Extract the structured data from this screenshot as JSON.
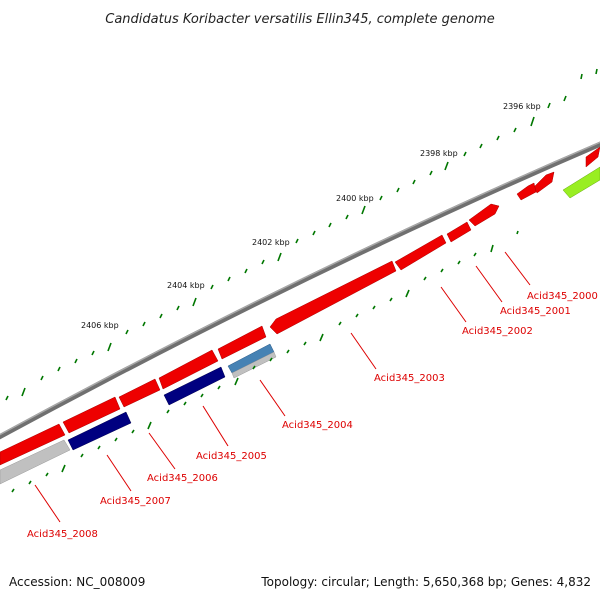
{
  "title": "Candidatus Koribacter versatilis Ellin345, complete genome",
  "footer": {
    "accession": "Accession: NC_008009",
    "topology": "Topology: circular; Length: 5,650,368 bp; Genes: 4,832"
  },
  "scale_labels": [
    "2396 kbp",
    "2398 kbp",
    "2400 kbp",
    "2402 kbp",
    "2404 kbp",
    "2406 kbp"
  ],
  "gene_labels": [
    "Acid345_2000",
    "Acid345_2001",
    "Acid345_2002",
    "Acid345_2003",
    "Acid345_2004",
    "Acid345_2005",
    "Acid345_2006",
    "Acid345_2007",
    "Acid345_2008"
  ],
  "colors": {
    "backbone": "#808080",
    "cds": "#ee0000",
    "cds_dark": "#aa0000",
    "trna_rrna": "#000080",
    "other": "#4682b4",
    "gray_feature": "#c0c0c0",
    "green_feature": "#99ee22",
    "tick": "#007700",
    "label_line": "#dd0000"
  }
}
